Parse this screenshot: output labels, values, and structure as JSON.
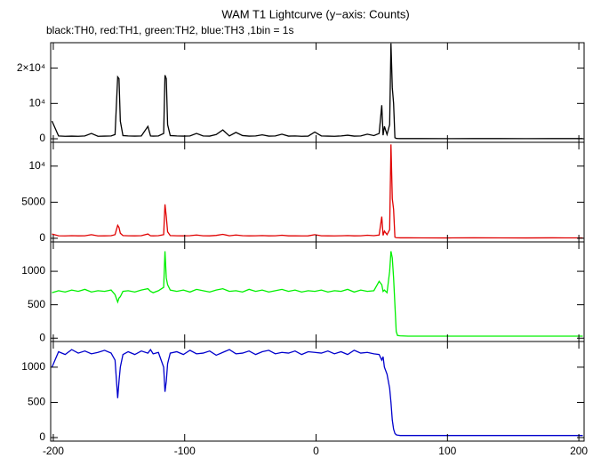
{
  "title": "WAM T1 Lightcurve (y−axis: Counts)",
  "subtitle": "black:TH0, red:TH1, green:TH2, blue:TH3 ,1bin = 1s",
  "chart_data": [
    {
      "type": "line",
      "color": "#000000",
      "x": [
        -201,
        -196,
        -191,
        -186,
        -181,
        -176,
        -171,
        -166,
        -161,
        -156,
        -153,
        -151,
        -150,
        -149,
        -147,
        -143,
        -138,
        -133,
        -128,
        -126,
        -124,
        -120,
        -116,
        -115,
        -114,
        -113,
        -111,
        -106,
        -101,
        -96,
        -91,
        -86,
        -81,
        -76,
        -71,
        -66,
        -61,
        -56,
        -51,
        -46,
        -41,
        -36,
        -31,
        -26,
        -21,
        -16,
        -11,
        -6,
        -1,
        4,
        9,
        14,
        19,
        24,
        29,
        34,
        39,
        44,
        48,
        50,
        51,
        52,
        54,
        56,
        57,
        58,
        59,
        60,
        61,
        62,
        64,
        70,
        80,
        100,
        120,
        140,
        160,
        180,
        203
      ],
      "values": [
        5000,
        800,
        700,
        750,
        700,
        800,
        1500,
        700,
        750,
        800,
        1200,
        17500,
        17000,
        5000,
        900,
        800,
        750,
        800,
        3500,
        800,
        750,
        800,
        1500,
        18000,
        17000,
        4000,
        900,
        800,
        750,
        800,
        1500,
        800,
        750,
        1200,
        2500,
        800,
        1800,
        900,
        750,
        800,
        1100,
        750,
        800,
        1300,
        750,
        800,
        700,
        750,
        1900,
        800,
        750,
        700,
        800,
        1000,
        750,
        800,
        1300,
        900,
        1500,
        9500,
        1000,
        3500,
        1200,
        4000,
        27000,
        14500,
        10000,
        300,
        100,
        80,
        60,
        50,
        50,
        40,
        50,
        50,
        45,
        50,
        50
      ],
      "xlim": [
        -202,
        204
      ],
      "xticks": [
        -200,
        -100,
        0,
        100,
        200
      ],
      "ylim": [
        -1000,
        27200
      ],
      "yticks": [
        0,
        {
          "value": 10000,
          "label": "10⁴"
        },
        {
          "value": 20000,
          "label": "2×10⁴"
        }
      ]
    },
    {
      "type": "line",
      "color": "#e00000",
      "x": [
        -201,
        -196,
        -191,
        -186,
        -181,
        -176,
        -171,
        -166,
        -161,
        -156,
        -153,
        -151,
        -150,
        -149,
        -147,
        -143,
        -138,
        -133,
        -128,
        -126,
        -124,
        -120,
        -116,
        -115,
        -114,
        -113,
        -111,
        -106,
        -101,
        -96,
        -91,
        -86,
        -81,
        -76,
        -71,
        -66,
        -61,
        -56,
        -51,
        -46,
        -41,
        -36,
        -31,
        -26,
        -21,
        -16,
        -11,
        -6,
        -1,
        4,
        9,
        14,
        19,
        24,
        29,
        34,
        39,
        44,
        48,
        50,
        51,
        52,
        54,
        56,
        57,
        58,
        59,
        60,
        61,
        62,
        64,
        70,
        80,
        100,
        120,
        140,
        160,
        180,
        203
      ],
      "values": [
        600,
        350,
        330,
        360,
        340,
        350,
        500,
        330,
        340,
        360,
        500,
        1800,
        1500,
        700,
        380,
        350,
        340,
        360,
        600,
        350,
        340,
        360,
        500,
        4700,
        3000,
        900,
        380,
        350,
        340,
        360,
        450,
        350,
        340,
        400,
        550,
        350,
        450,
        360,
        340,
        350,
        380,
        340,
        350,
        420,
        340,
        350,
        330,
        340,
        500,
        350,
        340,
        330,
        350,
        380,
        340,
        350,
        420,
        360,
        450,
        3000,
        400,
        1000,
        500,
        1200,
        13000,
        5500,
        4000,
        150,
        80,
        70,
        60,
        60,
        55,
        50,
        60,
        55,
        50,
        60,
        55
      ],
      "xlim": [
        -202,
        204
      ],
      "xticks": [
        -200,
        -100,
        0,
        100,
        200
      ],
      "ylim": [
        -500,
        13300
      ],
      "yticks": [
        0,
        5000,
        {
          "value": 10000,
          "label": "10⁴"
        }
      ]
    },
    {
      "type": "line",
      "color": "#00f000",
      "x": [
        -201,
        -196,
        -191,
        -186,
        -181,
        -176,
        -171,
        -166,
        -161,
        -156,
        -153,
        -151,
        -150,
        -149,
        -147,
        -143,
        -138,
        -133,
        -128,
        -126,
        -124,
        -120,
        -116,
        -115,
        -114,
        -113,
        -111,
        -106,
        -101,
        -96,
        -91,
        -86,
        -81,
        -76,
        -71,
        -66,
        -61,
        -56,
        -51,
        -46,
        -41,
        -36,
        -31,
        -26,
        -21,
        -16,
        -11,
        -6,
        -1,
        4,
        9,
        14,
        19,
        24,
        29,
        34,
        39,
        44,
        48,
        50,
        51,
        52,
        54,
        56,
        57,
        58,
        59,
        60,
        61,
        62,
        64,
        70,
        80,
        100,
        120,
        140,
        160,
        180,
        203
      ],
      "values": [
        680,
        710,
        690,
        720,
        700,
        730,
        690,
        710,
        700,
        720,
        650,
        540,
        600,
        620,
        700,
        710,
        690,
        720,
        740,
        700,
        680,
        710,
        760,
        1300,
        900,
        800,
        720,
        700,
        720,
        690,
        730,
        710,
        690,
        720,
        740,
        700,
        710,
        690,
        730,
        700,
        720,
        690,
        710,
        730,
        700,
        720,
        690,
        710,
        700,
        720,
        690,
        710,
        700,
        730,
        690,
        720,
        700,
        710,
        850,
        800,
        700,
        720,
        680,
        1000,
        1300,
        1200,
        900,
        500,
        100,
        40,
        35,
        30,
        30,
        30,
        30,
        30,
        30,
        30,
        30
      ],
      "xlim": [
        -202,
        204
      ],
      "xticks": [
        -200,
        -100,
        0,
        100,
        200
      ],
      "ylim": [
        -50,
        1440
      ],
      "yticks": [
        0,
        500,
        1000
      ]
    },
    {
      "type": "line",
      "color": "#0000cc",
      "x": [
        -201,
        -196,
        -191,
        -186,
        -181,
        -176,
        -171,
        -166,
        -161,
        -156,
        -153,
        -151,
        -150,
        -149,
        -147,
        -143,
        -138,
        -133,
        -128,
        -126,
        -124,
        -120,
        -116,
        -115,
        -114,
        -113,
        -111,
        -106,
        -101,
        -96,
        -91,
        -86,
        -81,
        -76,
        -71,
        -66,
        -61,
        -56,
        -51,
        -46,
        -41,
        -36,
        -31,
        -26,
        -21,
        -16,
        -11,
        -6,
        -1,
        4,
        9,
        14,
        19,
        24,
        29,
        34,
        39,
        44,
        48,
        50,
        51,
        52,
        54,
        56,
        57,
        58,
        59,
        60,
        61,
        62,
        64,
        70,
        80,
        100,
        120,
        140,
        160,
        180,
        203
      ],
      "values": [
        1000,
        1220,
        1180,
        1250,
        1200,
        1230,
        1190,
        1210,
        1240,
        1200,
        1100,
        560,
        800,
        1000,
        1180,
        1220,
        1180,
        1230,
        1200,
        1250,
        1190,
        1210,
        1000,
        650,
        800,
        1050,
        1200,
        1220,
        1180,
        1240,
        1190,
        1200,
        1230,
        1170,
        1210,
        1250,
        1190,
        1200,
        1230,
        1180,
        1220,
        1240,
        1190,
        1210,
        1200,
        1230,
        1180,
        1220,
        1210,
        1200,
        1230,
        1190,
        1220,
        1180,
        1240,
        1200,
        1210,
        1190,
        1180,
        1100,
        1150,
        1000,
        900,
        700,
        500,
        250,
        120,
        60,
        40,
        35,
        30,
        30,
        30,
        30,
        30,
        30,
        30,
        30,
        30
      ],
      "xlim": [
        -202,
        204
      ],
      "xticks": [
        -200,
        -100,
        0,
        100,
        200
      ],
      "ylim": [
        -50,
        1365
      ],
      "yticks": [
        0,
        500,
        1000
      ]
    }
  ]
}
